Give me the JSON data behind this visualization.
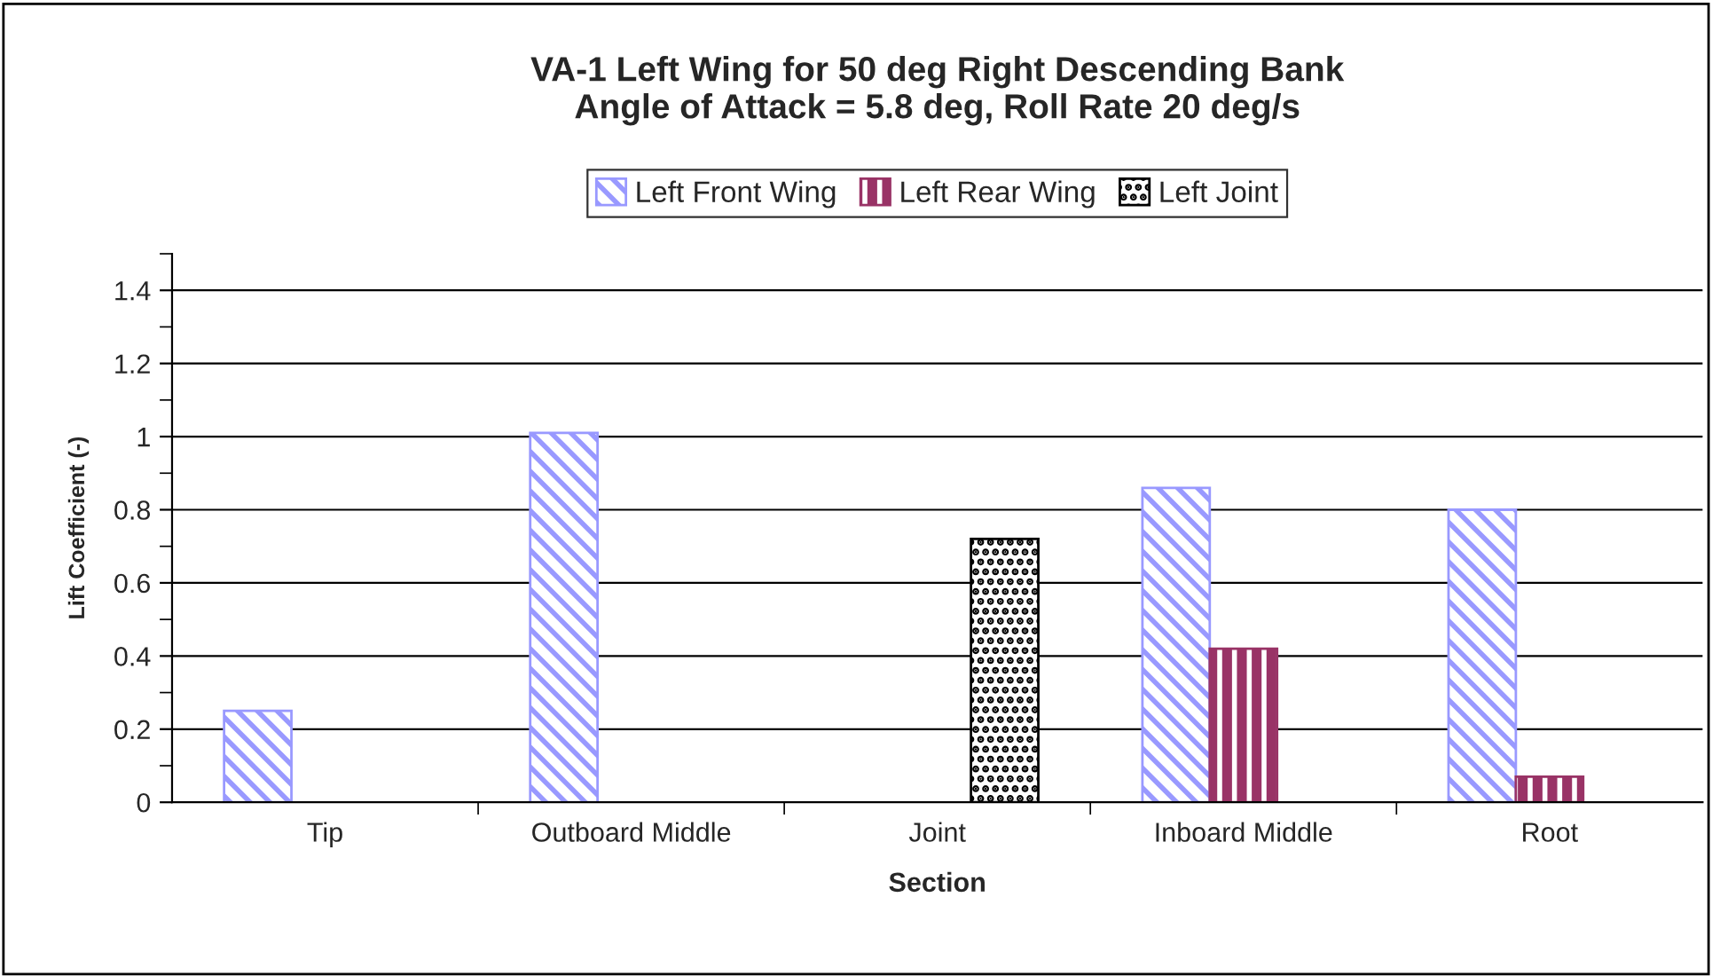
{
  "chart_data": {
    "type": "bar",
    "title": "VA-1 Left Wing for 50 deg Right Descending Bank\nAngle of Attack = 5.8 deg, Roll Rate 20 deg/s",
    "xlabel": "Section",
    "ylabel": "Lift Coefficient (-)",
    "categories": [
      "Tip",
      "Outboard Middle",
      "Joint",
      "Inboard Middle",
      "Root"
    ],
    "series": [
      {
        "name": "Left Front Wing",
        "color": "#9999ff",
        "values": [
          0.25,
          1.01,
          null,
          0.86,
          0.8
        ]
      },
      {
        "name": "Left Rear Wing",
        "color": "#993366",
        "values": [
          null,
          null,
          null,
          0.42,
          0.07
        ]
      },
      {
        "name": "Left Joint",
        "color": "#000000",
        "values": [
          null,
          null,
          0.72,
          null,
          null
        ]
      }
    ],
    "ylim": [
      0,
      1.5
    ],
    "yticks": [
      0,
      0.2,
      0.4,
      0.6,
      0.8,
      1,
      1.2,
      1.4
    ],
    "grid": "y",
    "legend": "top"
  }
}
